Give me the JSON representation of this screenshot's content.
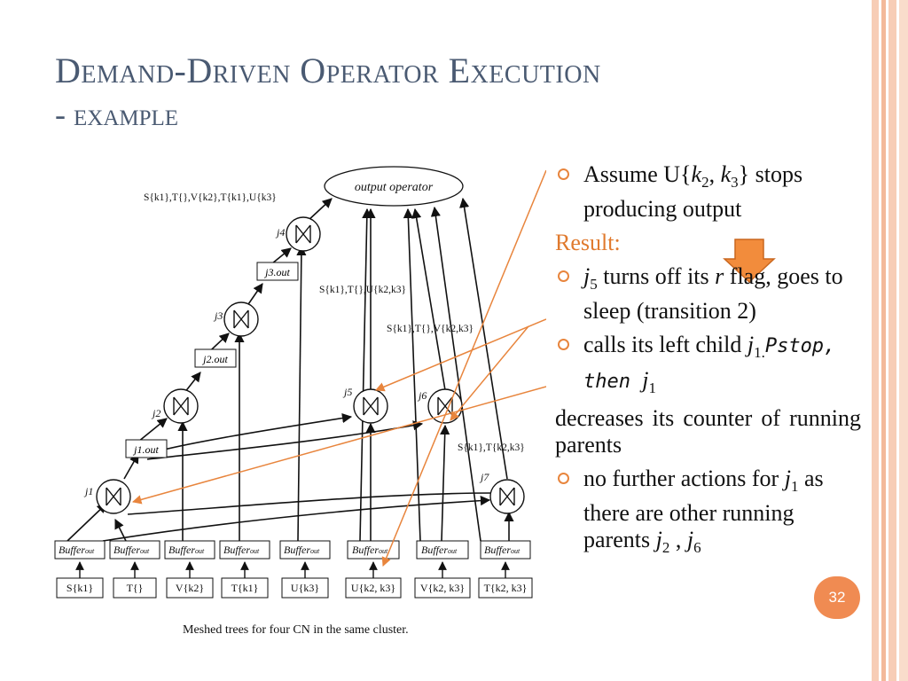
{
  "slide": {
    "title_line1": "Demand-Driven Operator Execution",
    "title_line2": "- example",
    "page_number": "32",
    "accent_color": "#e8853d"
  },
  "diagram": {
    "caption": "Meshed trees for four CN in the same cluster.",
    "output_operator": "output operator",
    "joins": [
      "j1",
      "j2",
      "j3",
      "j4",
      "j5",
      "j6",
      "j7"
    ],
    "buffer_label": "Buffer",
    "buffer_sub": "out",
    "relations": [
      "S{k1}",
      "T{}",
      "V{k2}",
      "T{k1}",
      "U{k3}",
      "U{k2, k3}",
      "V{k2, k3}",
      "T{k2, k3}"
    ],
    "outs": [
      "j1.out",
      "j2.out",
      "j3.out"
    ],
    "label_top": "S{k1},T{},V{k2},T{k1},U{k3}",
    "label_mid": "S{k1},T{},U{k2,k3}",
    "label_mid2": "S{k1},T{},V{k2,k3}",
    "label_j7": "S{k1},T{k2,k3}"
  },
  "bullets": {
    "b1_pre": "Assume U{",
    "b1_k2": "k",
    "b1_k2_sub": "2",
    "b1_sep": ", ",
    "b1_k3": "k",
    "b1_k3_sub": "3",
    "b1_post": "} stops producing output",
    "result": "Result:",
    "b2_j": "j",
    "b2_j_sub": "5",
    "b2_mid": " turns off  its ",
    "b2_r": "r",
    "b2_post": " flag, goes to sleep (transition 2)",
    "b3_pre": "calls its left child ",
    "b3_j": "j",
    "b3_j_sub": "1.",
    "b3_math": "Pstop,  then  ",
    "b3_j1": "j",
    "b3_j1_sub": "1",
    "cont": " decreases  its  counter of running parents",
    "b4_pre": "no further actions for ",
    "b4_j": "j",
    "b4_j_sub": "1",
    "b4_mid": " as there are other running parents ",
    "b4_j2": "j",
    "b4_j2_sub": "2",
    "b4_sep": " , ",
    "b4_j6": "j",
    "b4_j6_sub": "6"
  }
}
